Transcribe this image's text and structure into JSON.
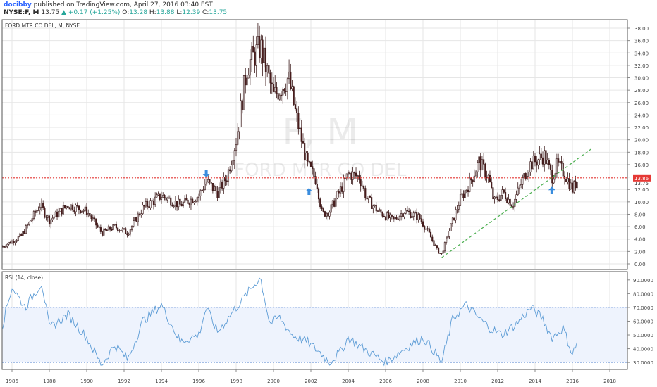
{
  "header": {
    "author": "docibby",
    "published_text": "published on TradingView.com, April 27, 2016 03:40 EST",
    "symbol": "NYSE:F, M",
    "last": "13.75",
    "change": "+0.17 (+1.25%)",
    "open_label": "O:",
    "open": "13.28",
    "high_label": "H:",
    "high": "13.88",
    "low_label": "L:",
    "low": "12.39",
    "close_label": "C:",
    "close": "13.75"
  },
  "chart_data": {
    "type": "candlestick",
    "price_panel": {
      "title": "FORD MTR CO DEL, M, NYSE",
      "watermark_ticker": "F, M",
      "watermark_name": "FORD MTR CO DEL",
      "ylim": [
        0,
        38
      ],
      "yticks": [
        "0.00",
        "2.00",
        "4.00",
        "6.00",
        "8.00",
        "10.00",
        "12.00",
        "14.00",
        "16.00",
        "18.00",
        "20.00",
        "22.00",
        "24.00",
        "26.00",
        "28.00",
        "30.00",
        "32.00",
        "34.00",
        "36.00",
        "38.00"
      ],
      "price_line": 13.86,
      "price_line_label": "13.86",
      "last_price": 13.75,
      "last_price_label": "13.75",
      "key_points": [
        [
          1985.5,
          2.8
        ],
        [
          1986.5,
          4.5
        ],
        [
          1987.5,
          9.5
        ],
        [
          1988.0,
          7.0
        ],
        [
          1989.0,
          9.5
        ],
        [
          1990.0,
          8.5
        ],
        [
          1990.8,
          5.0
        ],
        [
          1991.5,
          6.0
        ],
        [
          1992.2,
          5.0
        ],
        [
          1993.0,
          9.0
        ],
        [
          1994.0,
          11.0
        ],
        [
          1995.0,
          9.5
        ],
        [
          1996.0,
          11.0
        ],
        [
          1996.4,
          13.3
        ],
        [
          1997.0,
          11.5
        ],
        [
          1997.5,
          14.0
        ],
        [
          1998.0,
          20.0
        ],
        [
          1998.6,
          32.0
        ],
        [
          1999.3,
          35.0
        ],
        [
          2000.0,
          27.0
        ],
        [
          2000.8,
          30.0
        ],
        [
          2001.2,
          24.0
        ],
        [
          2001.8,
          16.0
        ],
        [
          2002.3,
          13.5
        ],
        [
          2002.6,
          8.0
        ],
        [
          2003.0,
          8.5
        ],
        [
          2003.6,
          12.0
        ],
        [
          2004.0,
          14.5
        ],
        [
          2004.6,
          14.0
        ],
        [
          2005.0,
          10.5
        ],
        [
          2005.6,
          8.5
        ],
        [
          2006.4,
          7.0
        ],
        [
          2007.0,
          8.5
        ],
        [
          2007.8,
          7.5
        ],
        [
          2008.3,
          5.0
        ],
        [
          2008.8,
          2.0
        ],
        [
          2009.0,
          1.6
        ],
        [
          2009.6,
          7.0
        ],
        [
          2010.0,
          10.5
        ],
        [
          2010.5,
          13.0
        ],
        [
          2011.0,
          16.5
        ],
        [
          2011.5,
          14.0
        ],
        [
          2011.8,
          10.0
        ],
        [
          2012.3,
          11.5
        ],
        [
          2012.8,
          9.5
        ],
        [
          2013.2,
          12.5
        ],
        [
          2013.7,
          16.0
        ],
        [
          2014.0,
          16.5
        ],
        [
          2014.5,
          17.5
        ],
        [
          2014.9,
          14.0
        ],
        [
          2015.2,
          16.0
        ],
        [
          2015.6,
          14.5
        ],
        [
          2016.0,
          12.0
        ],
        [
          2016.3,
          13.75
        ]
      ],
      "trendline": {
        "x": [
          2009.0,
          2017.0
        ],
        "y": [
          1.0,
          18.5
        ],
        "style": "dashed",
        "color": "#4caf50"
      },
      "arrows": [
        {
          "x": 1996.4,
          "y": 14.4,
          "direction": "down"
        },
        {
          "x": 2001.9,
          "y": 11.8,
          "direction": "up"
        },
        {
          "x": 2014.9,
          "y": 12.0,
          "direction": "up"
        }
      ]
    },
    "rsi_panel": {
      "title": "RSI (14, close)",
      "ylim": [
        27,
        94
      ],
      "yticks": [
        "30.0000",
        "40.0000",
        "50.0000",
        "60.0000",
        "70.0000",
        "80.0000",
        "90.0000"
      ],
      "upper_band": 70,
      "lower_band": 30,
      "key_points": [
        [
          1985.5,
          58
        ],
        [
          1986.0,
          85
        ],
        [
          1986.7,
          70
        ],
        [
          1987.6,
          88
        ],
        [
          1988.0,
          55
        ],
        [
          1989.0,
          65
        ],
        [
          1990.0,
          48
        ],
        [
          1990.8,
          28
        ],
        [
          1991.5,
          43
        ],
        [
          1992.2,
          32
        ],
        [
          1993.0,
          60
        ],
        [
          1994.0,
          72
        ],
        [
          1995.0,
          45
        ],
        [
          1996.0,
          50
        ],
        [
          1996.4,
          70
        ],
        [
          1997.0,
          52
        ],
        [
          1998.0,
          70
        ],
        [
          1999.3,
          92
        ],
        [
          1999.8,
          58
        ],
        [
          2000.3,
          63
        ],
        [
          2001.0,
          50
        ],
        [
          2001.8,
          45
        ],
        [
          2002.6,
          36
        ],
        [
          2003.0,
          30
        ],
        [
          2003.6,
          38
        ],
        [
          2004.0,
          48
        ],
        [
          2004.6,
          42
        ],
        [
          2005.3,
          36
        ],
        [
          2006.0,
          30
        ],
        [
          2007.0,
          40
        ],
        [
          2008.0,
          48
        ],
        [
          2008.5,
          40
        ],
        [
          2009.0,
          30
        ],
        [
          2009.6,
          62
        ],
        [
          2010.3,
          72
        ],
        [
          2011.0,
          62
        ],
        [
          2011.6,
          55
        ],
        [
          2012.2,
          50
        ],
        [
          2013.0,
          58
        ],
        [
          2013.8,
          70
        ],
        [
          2014.4,
          62
        ],
        [
          2014.9,
          48
        ],
        [
          2015.5,
          55
        ],
        [
          2016.0,
          36
        ],
        [
          2016.3,
          46
        ]
      ],
      "color": "#5b9bd5"
    },
    "x_axis": {
      "ticks": [
        "1986",
        "1988",
        "1990",
        "1992",
        "1994",
        "1996",
        "1998",
        "2000",
        "2002",
        "2004",
        "2006",
        "2008",
        "2010",
        "2012",
        "2014",
        "2016",
        "2018"
      ],
      "xlim": [
        1985.3,
        2019.3
      ]
    },
    "colors": {
      "up": "#ffffff",
      "down": "#4e1e1e",
      "wick": "#3a1818",
      "price_line": "#e53935",
      "arrow": "#3a8dde",
      "rsi_band_fill": "#eef3fd",
      "rsi_band_line": "#6f97d8",
      "grid": "#e6e6e6"
    }
  }
}
